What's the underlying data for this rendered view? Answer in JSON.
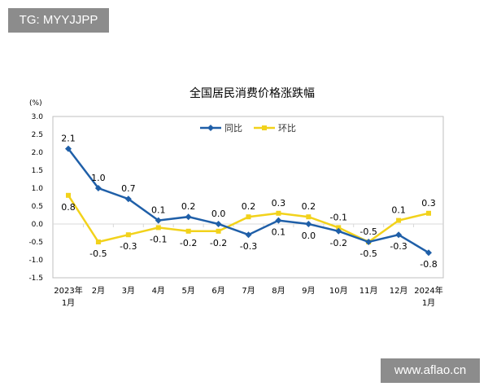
{
  "watermarks": {
    "top_left": "TG: MYYJJPP",
    "bottom_right": "www.aflao.cn"
  },
  "chart_data": {
    "type": "line",
    "title": "全国居民消费价格涨跌幅",
    "ylabel": "(%)",
    "xlabel": "",
    "ylim": [
      -1.5,
      3.0
    ],
    "yticks": [
      "3.0",
      "2.5",
      "2.0",
      "1.5",
      "1.0",
      "0.5",
      "0.0",
      "-0.5",
      "-1.0",
      "-1.5"
    ],
    "categories": [
      [
        "2023年",
        "1月"
      ],
      [
        "2月"
      ],
      [
        "3月"
      ],
      [
        "4月"
      ],
      [
        "5月"
      ],
      [
        "6月"
      ],
      [
        "7月"
      ],
      [
        "8月"
      ],
      [
        "9月"
      ],
      [
        "10月"
      ],
      [
        "11月"
      ],
      [
        "12月"
      ],
      [
        "2024年",
        "1月"
      ]
    ],
    "legend_position": "top-center",
    "grid": false,
    "series": [
      {
        "name": "同比",
        "color": "#1f5fa8",
        "marker": "diamond",
        "values": [
          2.1,
          1.0,
          0.7,
          0.1,
          0.2,
          0.0,
          -0.3,
          0.1,
          0.0,
          -0.2,
          -0.5,
          -0.3,
          -0.8
        ]
      },
      {
        "name": "环比",
        "color": "#f2d21b",
        "marker": "square",
        "values": [
          0.8,
          -0.5,
          -0.3,
          -0.1,
          -0.2,
          -0.2,
          0.2,
          0.3,
          0.2,
          -0.1,
          -0.5,
          0.1,
          0.3
        ]
      }
    ]
  }
}
